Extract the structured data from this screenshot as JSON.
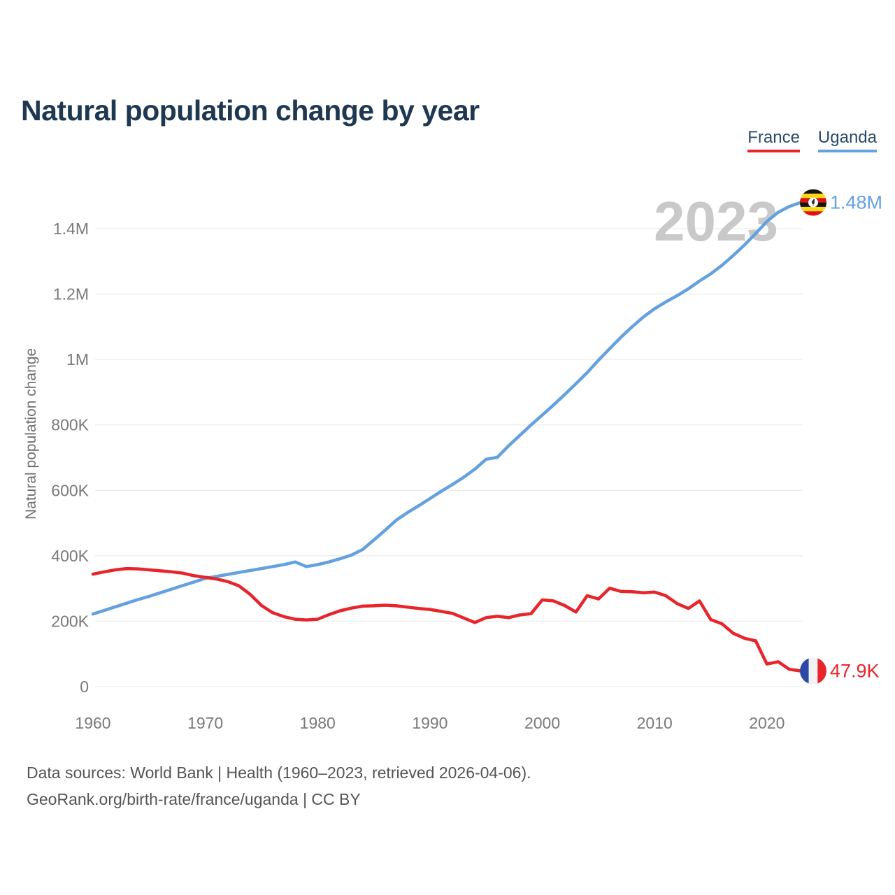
{
  "title": "Natural population change by year",
  "watermark": "2023",
  "legend": {
    "items": [
      {
        "label": "France",
        "color": "#e7252b"
      },
      {
        "label": "Uganda",
        "color": "#64a1df"
      }
    ]
  },
  "y_axis": {
    "title": "Natural population change",
    "ticks": [
      {
        "label": "0",
        "value": 0
      },
      {
        "label": "200K",
        "value": 200000
      },
      {
        "label": "400K",
        "value": 400000
      },
      {
        "label": "600K",
        "value": 600000
      },
      {
        "label": "800K",
        "value": 800000
      },
      {
        "label": "1M",
        "value": 1000000
      },
      {
        "label": "1.2M",
        "value": 1200000
      },
      {
        "label": "1.4M",
        "value": 1400000
      }
    ]
  },
  "x_axis": {
    "ticks": [
      1960,
      1970,
      1980,
      1990,
      2000,
      2010,
      2020
    ]
  },
  "footer": {
    "line1": "Data sources: World Bank | Health (1960–2023, retrieved 2026-04-06).",
    "line2": "GeoRank.org/birth-rate/france/uganda | CC BY"
  },
  "chart_data": {
    "type": "line",
    "title": "Natural population change by year",
    "xlabel": "",
    "ylabel": "Natural population change",
    "xlim": [
      1960,
      2023
    ],
    "ylim": [
      0,
      1500000
    ],
    "grid": true,
    "legend_position": "top-right",
    "watermark": "2023",
    "x": [
      1960,
      1961,
      1962,
      1963,
      1964,
      1965,
      1966,
      1967,
      1968,
      1969,
      1970,
      1971,
      1972,
      1973,
      1974,
      1975,
      1976,
      1977,
      1978,
      1979,
      1980,
      1981,
      1982,
      1983,
      1984,
      1985,
      1986,
      1987,
      1988,
      1989,
      1990,
      1991,
      1992,
      1993,
      1994,
      1995,
      1996,
      1997,
      1998,
      1999,
      2000,
      2001,
      2002,
      2003,
      2004,
      2005,
      2006,
      2007,
      2008,
      2009,
      2010,
      2011,
      2012,
      2013,
      2014,
      2015,
      2016,
      2017,
      2018,
      2019,
      2020,
      2021,
      2022,
      2023
    ],
    "series": [
      {
        "name": "France",
        "color": "#e7252b",
        "end_label": "47.9K",
        "final_value": 47900,
        "values": [
          344000,
          351000,
          357000,
          361000,
          360000,
          357000,
          354000,
          351000,
          347000,
          339000,
          334000,
          329000,
          321000,
          308000,
          282000,
          248000,
          226000,
          214000,
          206000,
          204000,
          206000,
          220000,
          232000,
          240000,
          246000,
          247000,
          249000,
          247000,
          243000,
          239000,
          236000,
          230000,
          224000,
          210000,
          196000,
          211000,
          215000,
          211000,
          219000,
          223000,
          265000,
          262000,
          248000,
          228000,
          278000,
          268000,
          301000,
          291000,
          290000,
          287000,
          289000,
          278000,
          254000,
          239000,
          262000,
          205000,
          192000,
          163000,
          148000,
          140000,
          69000,
          76000,
          53000,
          47900
        ]
      },
      {
        "name": "Uganda",
        "color": "#64a1df",
        "end_label": "1.48M",
        "final_value": 1480000,
        "values": [
          222000,
          233000,
          244000,
          255000,
          266000,
          276000,
          287000,
          298000,
          309000,
          320000,
          331000,
          337000,
          343000,
          349000,
          355000,
          361000,
          367000,
          373000,
          381000,
          367000,
          373000,
          381000,
          391000,
          402000,
          419000,
          448000,
          478000,
          509000,
          532000,
          553000,
          575000,
          597000,
          618000,
          640000,
          665000,
          695000,
          701000,
          736000,
          768000,
          800000,
          830000,
          861000,
          893000,
          926000,
          960000,
          998000,
          1033000,
          1068000,
          1100000,
          1130000,
          1155000,
          1176000,
          1195000,
          1216000,
          1240000,
          1262000,
          1288000,
          1318000,
          1350000,
          1385000,
          1422000,
          1450000,
          1468000,
          1480000
        ]
      }
    ]
  }
}
